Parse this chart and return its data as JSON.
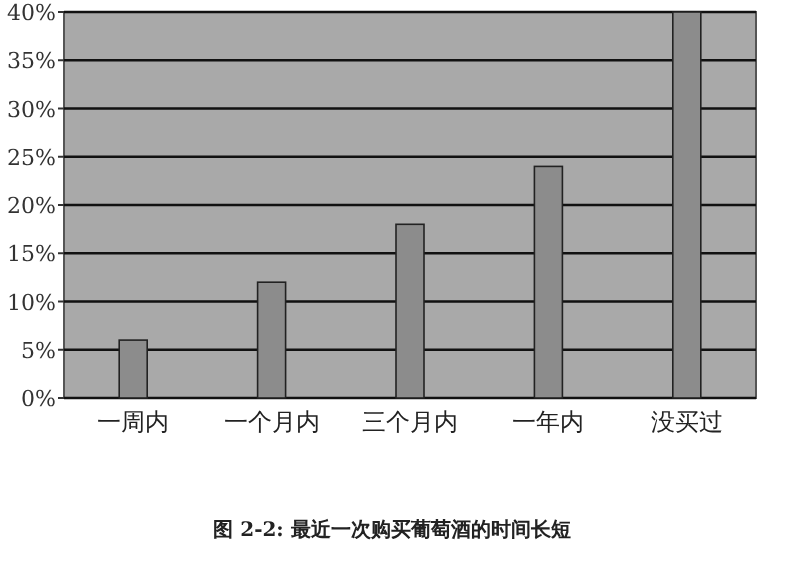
{
  "chart_data": {
    "type": "bar",
    "title": "图 2-2: 最近一次购买葡萄酒的时间长短",
    "categories": [
      "一周内",
      "一个月内",
      "三个月内",
      "一年内",
      "没买过"
    ],
    "values": [
      6,
      12,
      18,
      24,
      40
    ],
    "color": "#8c8c8c",
    "ylim": [
      0,
      40
    ],
    "yticks": [
      {
        "value": 0,
        "label": "0%"
      },
      {
        "value": 5,
        "label": "5%"
      },
      {
        "value": 10,
        "label": "10%"
      },
      {
        "value": 15,
        "label": "15%"
      },
      {
        "value": 20,
        "label": "20%"
      },
      {
        "value": 25,
        "label": "25%"
      },
      {
        "value": 30,
        "label": "30%"
      },
      {
        "value": 35,
        "label": "35%"
      },
      {
        "value": 40,
        "label": "40%"
      }
    ],
    "grid": "y"
  }
}
